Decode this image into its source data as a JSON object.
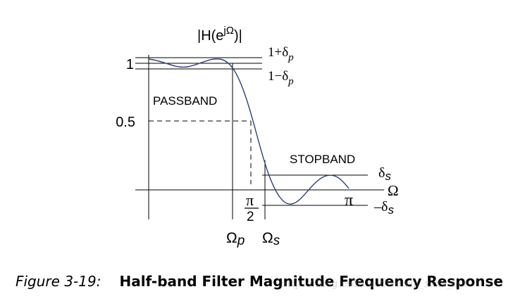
{
  "diagram": {
    "y_axis_label_prefix": "|H(e",
    "y_axis_label_superscript": "jΩ",
    "y_axis_label_suffix": ")|",
    "tick_one": "1",
    "tick_half": "0.5",
    "upper_ripple_prefix": "1+δ",
    "upper_ripple_sub": "p",
    "lower_ripple_prefix": "1−δ",
    "lower_ripple_sub": "p",
    "passband_label": "PASSBAND",
    "stopband_label": "STOPBAND",
    "stop_upper_main": "δ",
    "stop_upper_sub": "s",
    "stop_lower_main": "–δ",
    "stop_lower_sub": "s",
    "x_axis_label": "Ω",
    "pi_label": "π",
    "half_pi_numerator": "π",
    "half_pi_denominator": "2",
    "omega_p_main": "Ω",
    "omega_p_sub": "p",
    "omega_s_main": "Ω",
    "omega_s_sub": "s",
    "curve_color": "#2b3f7a",
    "line_color": "#000000"
  },
  "caption": {
    "figure_number": "Figure 3-19:",
    "title": "Half-band Filter Magnitude Frequency Response"
  },
  "watermark": "https://blog.csdn.net/weixin_xxxx_hee"
}
